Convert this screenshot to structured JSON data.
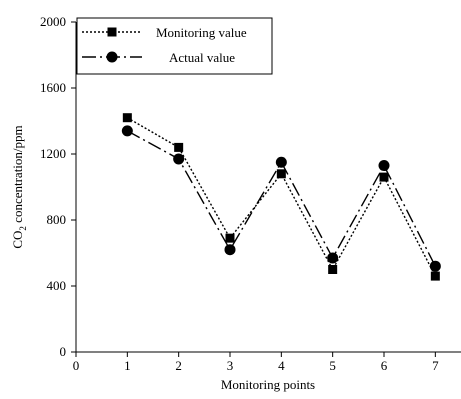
{
  "chart_data": {
    "type": "line",
    "xlabel": "Monitoring points",
    "ylabel": "CO2 concentration/ppm",
    "ylabel_parts": [
      "CO",
      "2",
      " concentration/ppm"
    ],
    "xlim": [
      0,
      7.5
    ],
    "ylim": [
      0,
      2000
    ],
    "xticks": [
      0,
      1,
      2,
      3,
      4,
      5,
      6,
      7
    ],
    "yticks": [
      0,
      400,
      800,
      1200,
      1600,
      2000
    ],
    "grid": false,
    "legend_position": "top-left",
    "series": [
      {
        "name": "Monitoring value",
        "marker": "square",
        "line_style": "dotted",
        "color": "#000000",
        "x": [
          1,
          2,
          3,
          4,
          5,
          6,
          7
        ],
        "y": [
          1420,
          1240,
          690,
          1080,
          500,
          1060,
          460
        ]
      },
      {
        "name": "Actual value",
        "marker": "circle",
        "line_style": "dash-dot",
        "color": "#000000",
        "x": [
          1,
          2,
          3,
          4,
          5,
          6,
          7
        ],
        "y": [
          1340,
          1170,
          620,
          1150,
          570,
          1130,
          520
        ]
      }
    ]
  }
}
